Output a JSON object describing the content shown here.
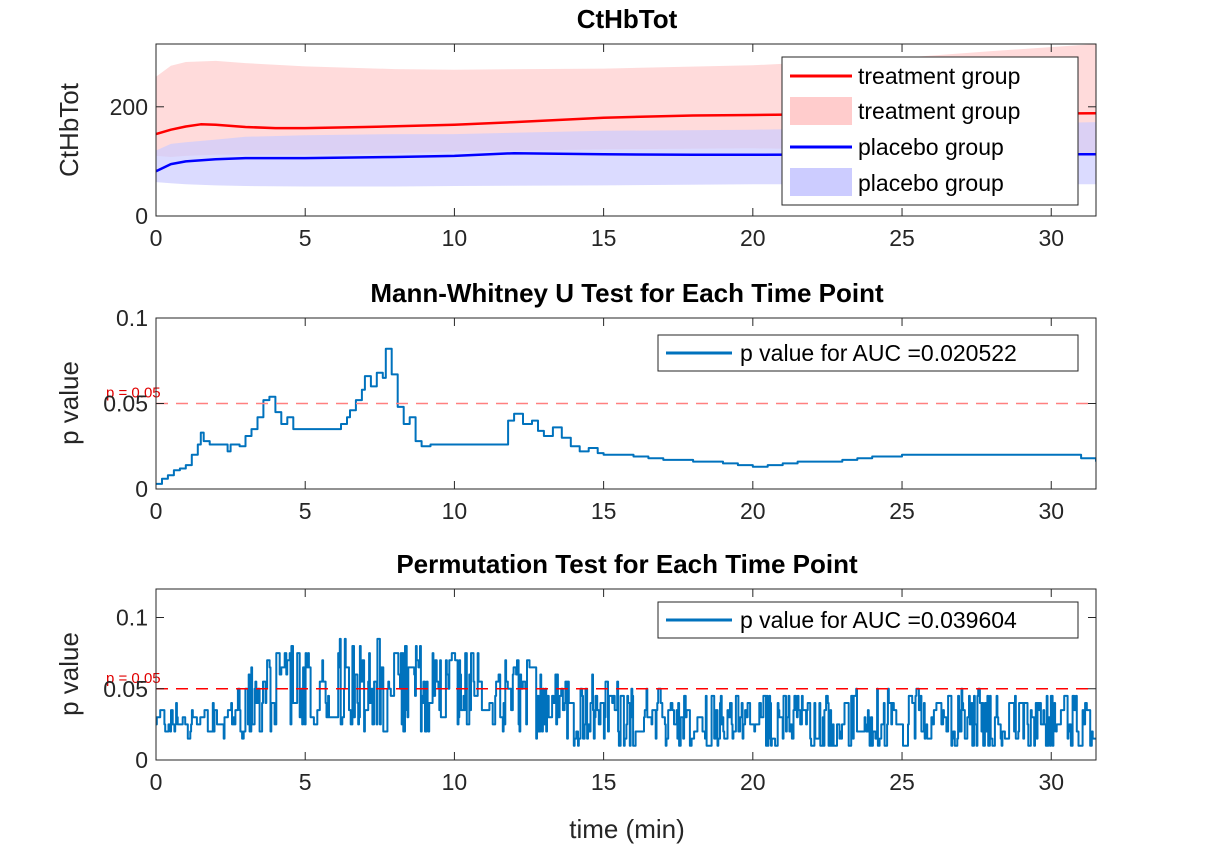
{
  "chart_data": [
    {
      "type": "line",
      "title": "CtHbTot",
      "xlabel": "",
      "ylabel": "CtHbTot",
      "xlim": [
        0,
        31.5
      ],
      "ylim": [
        0,
        315
      ],
      "xticks": [
        "0",
        "5",
        "10",
        "15",
        "20",
        "25",
        "30"
      ],
      "yticks": [
        "0",
        "200"
      ],
      "legend_position": "top-right",
      "grid": false,
      "series": [
        {
          "name": "treatment group",
          "kind": "line",
          "color": "#ff0000",
          "x": [
            0,
            0.5,
            1,
            1.5,
            2,
            3,
            4,
            5,
            7,
            10,
            12,
            15,
            18,
            20,
            22,
            25,
            28,
            31.5
          ],
          "y": [
            150,
            158,
            164,
            168,
            167,
            163,
            161,
            161,
            163,
            167,
            172,
            180,
            184,
            185,
            186,
            186,
            187,
            188
          ]
        },
        {
          "name": "treatment group",
          "kind": "band",
          "color": "#ffcccc",
          "x": [
            0,
            0.5,
            1,
            2,
            3,
            5,
            8,
            10,
            15,
            20,
            25,
            28,
            31.5
          ],
          "lower": [
            110,
            108,
            110,
            112,
            112,
            112,
            115,
            118,
            122,
            124,
            120,
            115,
            112
          ],
          "upper": [
            255,
            275,
            282,
            284,
            280,
            274,
            269,
            268,
            270,
            276,
            290,
            302,
            315
          ]
        },
        {
          "name": "placebo group",
          "kind": "line",
          "color": "#0000ff",
          "x": [
            0,
            0.5,
            1,
            2,
            3,
            5,
            8,
            10,
            12,
            15,
            18,
            20,
            25,
            31.5
          ],
          "y": [
            82,
            95,
            100,
            104,
            106,
            106,
            108,
            110,
            115,
            113,
            112,
            112,
            113,
            113
          ]
        },
        {
          "name": "placebo group",
          "kind": "band",
          "color": "#ccccff",
          "x": [
            0,
            0.5,
            1,
            2,
            3,
            5,
            8,
            10,
            15,
            20,
            25,
            28,
            31.5
          ],
          "lower": [
            62,
            60,
            58,
            56,
            55,
            54,
            54,
            55,
            56,
            58,
            58,
            58,
            58
          ],
          "upper": [
            120,
            132,
            135,
            140,
            145,
            148,
            150,
            150,
            156,
            158,
            162,
            168,
            172
          ]
        }
      ]
    },
    {
      "type": "line",
      "title": "Mann-Whitney U Test for Each Time Point",
      "xlabel": "",
      "ylabel": "p value",
      "xlim": [
        0,
        31.5
      ],
      "ylim": [
        0,
        0.1
      ],
      "xticks": [
        "0",
        "5",
        "10",
        "15",
        "20",
        "25",
        "30"
      ],
      "yticks": [
        "0",
        "0.05",
        "0.1"
      ],
      "legend_position": "top-right",
      "grid": false,
      "threshold": {
        "y": 0.05,
        "label": "p = 0.05",
        "color": "#ff8080"
      },
      "series": [
        {
          "name": "p value for AUC =0.020522",
          "color": "#0072bd",
          "x": [
            0,
            0.2,
            0.4,
            0.6,
            0.8,
            1.0,
            1.2,
            1.4,
            1.5,
            1.6,
            1.8,
            2.0,
            2.4,
            2.5,
            2.8,
            3.0,
            3.2,
            3.4,
            3.6,
            3.8,
            4.0,
            4.2,
            4.4,
            4.6,
            5.0,
            5.5,
            6.0,
            6.2,
            6.4,
            6.5,
            6.7,
            6.9,
            7.0,
            7.2,
            7.4,
            7.6,
            7.7,
            7.9,
            8.1,
            8.3,
            8.5,
            8.7,
            8.9,
            9.2,
            10.0,
            11.0,
            11.5,
            11.8,
            12.0,
            12.3,
            12.6,
            12.8,
            13.0,
            13.3,
            13.6,
            13.9,
            14.2,
            14.5,
            14.8,
            15.0,
            15.5,
            16.0,
            16.5,
            17.0,
            17.5,
            18.0,
            18.5,
            19.0,
            19.5,
            20.0,
            20.5,
            21.0,
            21.5,
            22.0,
            22.5,
            23.0,
            23.5,
            24.0,
            25.0,
            26.0,
            27.0,
            28.0,
            29.0,
            30.0,
            31.0,
            31.5
          ],
          "y": [
            0.003,
            0.006,
            0.008,
            0.011,
            0.012,
            0.014,
            0.02,
            0.026,
            0.033,
            0.028,
            0.026,
            0.026,
            0.022,
            0.026,
            0.025,
            0.031,
            0.035,
            0.042,
            0.052,
            0.054,
            0.045,
            0.038,
            0.042,
            0.035,
            0.035,
            0.035,
            0.035,
            0.038,
            0.042,
            0.046,
            0.052,
            0.058,
            0.066,
            0.06,
            0.068,
            0.065,
            0.082,
            0.067,
            0.048,
            0.038,
            0.042,
            0.028,
            0.025,
            0.026,
            0.026,
            0.026,
            0.026,
            0.04,
            0.044,
            0.038,
            0.04,
            0.034,
            0.031,
            0.036,
            0.03,
            0.025,
            0.022,
            0.024,
            0.021,
            0.02,
            0.02,
            0.019,
            0.018,
            0.017,
            0.017,
            0.016,
            0.016,
            0.015,
            0.014,
            0.013,
            0.014,
            0.015,
            0.016,
            0.016,
            0.016,
            0.017,
            0.018,
            0.019,
            0.02,
            0.02,
            0.02,
            0.02,
            0.02,
            0.02,
            0.018,
            0.016
          ]
        }
      ]
    },
    {
      "type": "line",
      "title": "Permutation Test for Each Time Point",
      "xlabel": "time (min)",
      "ylabel": "p value",
      "xlim": [
        0,
        31.5
      ],
      "ylim": [
        0,
        0.12
      ],
      "xticks": [
        "0",
        "5",
        "10",
        "15",
        "20",
        "25",
        "30"
      ],
      "yticks": [
        "0",
        "0.05",
        "0.1"
      ],
      "legend_position": "top-right",
      "grid": false,
      "threshold": {
        "y": 0.05,
        "label": "p = 0.05",
        "color": "#ff0000"
      },
      "series": [
        {
          "name": "p value for AUC =0.039604",
          "color": "#0072bd",
          "profile": {
            "x": [
              0,
              2,
              3.5,
              5,
              7,
              9,
              11,
              13,
              15,
              17,
              20,
              25,
              31.5
            ],
            "mean": [
              0.025,
              0.028,
              0.042,
              0.055,
              0.056,
              0.05,
              0.045,
              0.04,
              0.033,
              0.028,
              0.027,
              0.028,
              0.027
            ],
            "spread": [
              0.012,
              0.013,
              0.028,
              0.035,
              0.035,
              0.032,
              0.03,
              0.028,
              0.025,
              0.022,
              0.02,
              0.022,
              0.02
            ],
            "step": 0.028,
            "resolution": 0.005,
            "min": 0.01,
            "max": 0.12
          }
        }
      ]
    }
  ]
}
